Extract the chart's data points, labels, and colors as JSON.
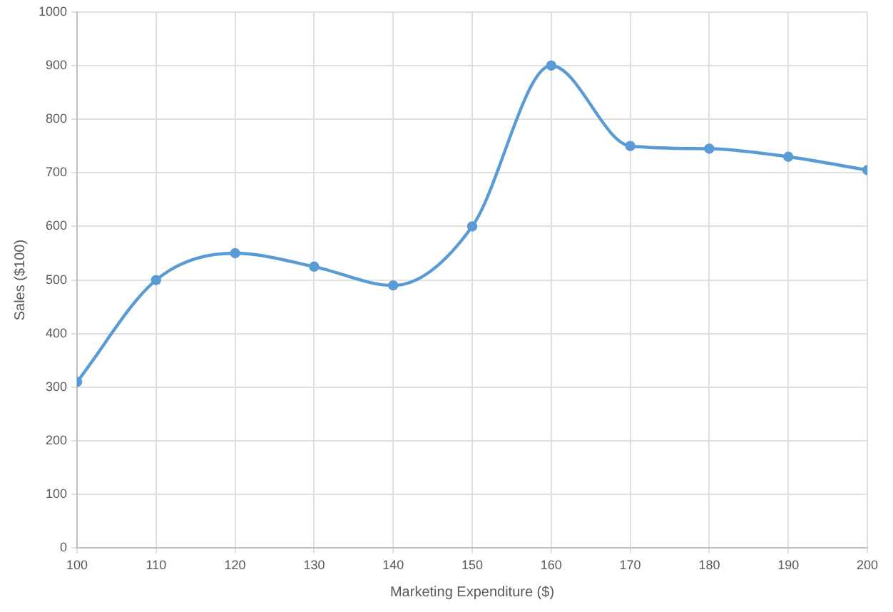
{
  "chart_data": {
    "type": "line",
    "xlabel": "Marketing Expenditure ($)",
    "ylabel": "Sales ($100)",
    "x": [
      100,
      110,
      120,
      130,
      140,
      150,
      160,
      170,
      180,
      190,
      200
    ],
    "series": [
      {
        "color": "#5b9bd5",
        "values": [
          310,
          500,
          550,
          525,
          490,
          600,
          900,
          750,
          745,
          730,
          705
        ]
      }
    ],
    "xlim": [
      100,
      200
    ],
    "xticks": [
      100,
      110,
      120,
      130,
      140,
      150,
      160,
      170,
      180,
      190,
      200
    ],
    "ylim": [
      0,
      1000
    ],
    "yticks": [
      0,
      100,
      200,
      300,
      400,
      500,
      600,
      700,
      800,
      900,
      1000
    ],
    "grid": true,
    "legend": false,
    "marker": "circle",
    "line_style": "solid"
  }
}
